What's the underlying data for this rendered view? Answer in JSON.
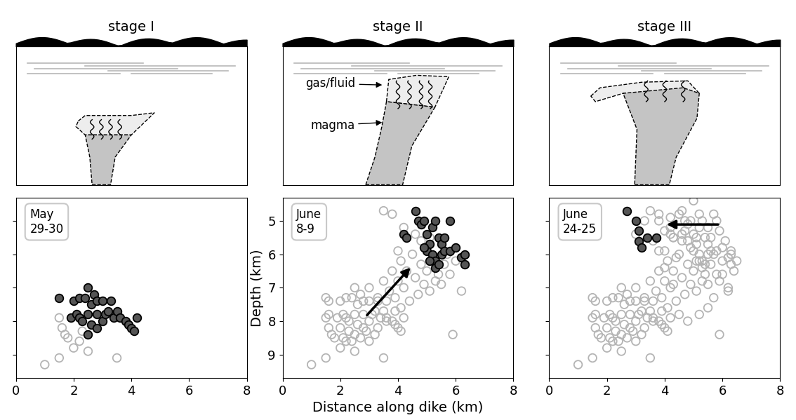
{
  "chart_data": [
    {
      "type": "scatter",
      "title": "stage I",
      "annotations": [
        "May\n29-30"
      ],
      "xlim": [
        0,
        8
      ],
      "xticks": [
        0,
        2,
        4,
        6,
        8
      ],
      "ylim": [
        9.7,
        4.3
      ],
      "yticks": [
        5,
        6,
        7,
        8,
        9
      ],
      "tick_labels": "x",
      "series": [
        {
          "color": "#b4b4b4",
          "marker": "circle_open",
          "x": [
            1.0,
            1.5,
            1.5,
            1.6,
            1.7,
            1.8,
            2.0,
            2.2,
            2.3,
            2.5,
            3.5
          ],
          "values": [
            9.3,
            7.9,
            9.1,
            8.2,
            8.4,
            8.5,
            8.8,
            8.6,
            8.3,
            8.9,
            9.1
          ]
        },
        {
          "color": "#555555",
          "marker": "circle",
          "x": [
            1.5,
            1.9,
            2.0,
            2.1,
            2.2,
            2.2,
            2.3,
            2.4,
            2.5,
            2.5,
            2.5,
            2.6,
            2.6,
            2.7,
            2.8,
            2.8,
            2.8,
            3.0,
            3.0,
            3.1,
            3.2,
            3.3,
            3.4,
            3.5,
            3.6,
            3.8,
            3.9,
            4.0,
            4.1,
            4.2
          ],
          "values": [
            7.3,
            7.9,
            7.4,
            7.8,
            7.3,
            7.9,
            8.0,
            7.3,
            7.0,
            7.8,
            8.4,
            7.5,
            8.1,
            7.2,
            7.4,
            7.8,
            8.2,
            7.4,
            8.0,
            7.8,
            7.7,
            7.4,
            7.9,
            7.7,
            7.9,
            8.0,
            8.1,
            8.2,
            8.3,
            7.9
          ]
        }
      ]
    },
    {
      "type": "scatter",
      "title": "stage II",
      "annotations": [
        "June\n8-9",
        "gas/fluid",
        "magma"
      ],
      "x_label": "Distance along dike (km)",
      "y_label": "Depth (km)",
      "xlim": [
        0,
        8
      ],
      "xticks": [
        0,
        2,
        4,
        6,
        8
      ],
      "ylim": [
        9.7,
        4.3
      ],
      "yticks": [
        5,
        6,
        7,
        8,
        9
      ],
      "series": [
        {
          "color": "#b4b4b4",
          "marker": "circle_open",
          "x": [
            1.0,
            1.5,
            1.5,
            1.6,
            1.7,
            1.8,
            2.0,
            2.2,
            2.3,
            2.5,
            3.5
          ],
          "values": [
            9.3,
            7.9,
            9.1,
            8.2,
            8.4,
            8.5,
            8.8,
            8.6,
            8.3,
            8.9,
            9.1
          ]
        },
        {
          "color": "#b4b4b4",
          "marker": "circle_open",
          "x": [
            1.5,
            1.9,
            2.0,
            2.1,
            2.2,
            2.2,
            2.3,
            2.4,
            2.5,
            2.5,
            2.5,
            2.6,
            2.6,
            2.7,
            2.8,
            2.8,
            2.8,
            3.0,
            3.0,
            3.1,
            3.2,
            3.3,
            3.4,
            3.5,
            3.6,
            3.8,
            3.9,
            4.0,
            4.1,
            4.2
          ],
          "values": [
            7.3,
            7.9,
            7.4,
            7.8,
            7.3,
            7.9,
            8.0,
            7.3,
            7.0,
            7.8,
            8.4,
            7.5,
            8.1,
            7.2,
            7.4,
            7.8,
            8.2,
            7.4,
            8.0,
            7.8,
            7.7,
            7.4,
            7.9,
            7.7,
            7.9,
            8.0,
            8.1,
            8.2,
            8.3,
            7.9
          ]
        },
        {
          "color": "#b4b4b4",
          "marker": "circle_open",
          "x": [
            1.6,
            1.6,
            2.0,
            2.1,
            2.4,
            2.7,
            2.9,
            3.0,
            3.2,
            3.3,
            3.0,
            3.3,
            3.5,
            3.6,
            3.7,
            3.8,
            3.9,
            4.0,
            4.1,
            4.2,
            4.3,
            4.4,
            4.5,
            4.6,
            4.7,
            4.8,
            4.9,
            5.0,
            5.1,
            5.2,
            5.3,
            5.4,
            5.5,
            5.6,
            5.7,
            5.8,
            6.0,
            6.2,
            4.0,
            4.2,
            3.8,
            3.5,
            4.3,
            4.6,
            4.8,
            5.1,
            5.9,
            3.6,
            3.9,
            4.1
          ],
          "values": [
            7.4,
            7.8,
            8.2,
            8.5,
            8.6,
            8.5,
            8.3,
            8.6,
            8.4,
            8.2,
            7.0,
            7.3,
            6.8,
            7.4,
            7.1,
            6.5,
            7.3,
            6.8,
            6.2,
            7.0,
            6.5,
            7.4,
            6.0,
            6.7,
            7.2,
            6.3,
            6.9,
            6.5,
            7.1,
            6.2,
            6.8,
            6.6,
            6.9,
            6.3,
            6.0,
            6.6,
            6.2,
            7.1,
            5.9,
            5.2,
            4.8,
            4.7,
            5.5,
            5.4,
            5.6,
            5.5,
            8.4,
            8.0,
            7.7,
            7.6
          ]
        },
        {
          "color": "#555555",
          "marker": "circle",
          "x": [
            4.2,
            4.3,
            4.6,
            4.7,
            4.8,
            4.9,
            5.0,
            5.1,
            5.2,
            5.3,
            5.4,
            5.5,
            5.6,
            5.8,
            5.0,
            5.2,
            5.3,
            5.3,
            5.5,
            5.6,
            5.1,
            5.8,
            6.0,
            6.2,
            6.3,
            6.3,
            5.4,
            4.9
          ],
          "values": [
            5.4,
            5.5,
            4.7,
            5.0,
            5.1,
            5.0,
            5.4,
            5.7,
            5.2,
            5.0,
            5.5,
            5.7,
            5.5,
            5.0,
            5.9,
            6.0,
            6.2,
            6.4,
            6.0,
            5.9,
            6.2,
            5.9,
            5.8,
            6.1,
            6.0,
            6.3,
            6.3,
            5.8
          ]
        }
      ]
    },
    {
      "type": "scatter",
      "title": "stage III",
      "annotations": [
        "June\n24-25"
      ],
      "xlim": [
        0,
        8
      ],
      "xticks": [
        0,
        2,
        4,
        6,
        8
      ],
      "ylim": [
        9.7,
        4.3
      ],
      "yticks": [
        5,
        6,
        7,
        8,
        9
      ],
      "tick_labels": "x",
      "series": [
        {
          "color": "#b4b4b4",
          "marker": "circle_open",
          "x": [
            1.0,
            1.5,
            1.5,
            1.6,
            1.7,
            1.8,
            2.0,
            2.2,
            2.3,
            2.5,
            3.5
          ],
          "values": [
            9.3,
            7.9,
            9.1,
            8.2,
            8.4,
            8.5,
            8.8,
            8.6,
            8.3,
            8.9,
            9.1
          ]
        },
        {
          "color": "#b4b4b4",
          "marker": "circle_open",
          "x": [
            1.5,
            1.9,
            2.0,
            2.1,
            2.2,
            2.2,
            2.3,
            2.4,
            2.5,
            2.5,
            2.5,
            2.6,
            2.6,
            2.7,
            2.8,
            2.8,
            2.8,
            3.0,
            3.0,
            3.1,
            3.2,
            3.3,
            3.4,
            3.5,
            3.6,
            3.8,
            3.9,
            4.0,
            4.1,
            4.2
          ],
          "values": [
            7.3,
            7.9,
            7.4,
            7.8,
            7.3,
            7.9,
            8.0,
            7.3,
            7.0,
            7.8,
            8.4,
            7.5,
            8.1,
            7.2,
            7.4,
            7.8,
            8.2,
            7.4,
            8.0,
            7.8,
            7.7,
            7.4,
            7.9,
            7.7,
            7.9,
            8.0,
            8.1,
            8.2,
            8.3,
            7.9
          ]
        },
        {
          "color": "#b4b4b4",
          "marker": "circle_open",
          "x": [
            1.6,
            1.6,
            2.0,
            2.1,
            2.4,
            2.7,
            2.9,
            3.0,
            3.2,
            3.3,
            3.0,
            3.3,
            3.5,
            3.6,
            3.7,
            3.8,
            3.9,
            4.0,
            4.1,
            4.2,
            4.3,
            4.4,
            4.5,
            4.6,
            4.7,
            4.8,
            4.9,
            5.0,
            5.1,
            5.2,
            5.3,
            5.4,
            5.5,
            5.6,
            5.7,
            5.8,
            6.0,
            6.2,
            4.0,
            4.2,
            3.8,
            3.5,
            4.3,
            4.6,
            4.8,
            5.1,
            5.9,
            3.6,
            3.9,
            4.1
          ],
          "values": [
            7.4,
            7.8,
            8.2,
            8.5,
            8.6,
            8.5,
            8.3,
            8.6,
            8.4,
            8.2,
            7.0,
            7.3,
            6.8,
            7.4,
            7.1,
            6.5,
            7.3,
            6.8,
            6.2,
            7.0,
            6.5,
            7.4,
            6.0,
            6.7,
            7.2,
            6.3,
            6.9,
            6.5,
            7.1,
            6.2,
            6.8,
            6.6,
            6.9,
            6.3,
            6.0,
            6.6,
            6.2,
            7.1,
            5.9,
            5.2,
            4.8,
            4.7,
            5.5,
            5.4,
            5.6,
            5.5,
            8.4,
            8.0,
            7.7,
            7.6
          ]
        },
        {
          "color": "#b4b4b4",
          "marker": "circle_open",
          "x": [
            4.2,
            4.3,
            4.6,
            4.7,
            4.8,
            4.9,
            5.0,
            5.1,
            5.2,
            5.3,
            5.4,
            5.5,
            5.6,
            5.8,
            5.0,
            5.2,
            5.3,
            5.3,
            5.5,
            5.6,
            5.1,
            5.8,
            6.0,
            6.2,
            6.3,
            6.3,
            5.4,
            4.9
          ],
          "values": [
            5.4,
            5.5,
            4.7,
            5.0,
            5.1,
            5.0,
            5.4,
            5.7,
            5.2,
            5.0,
            5.5,
            5.7,
            5.5,
            5.0,
            5.9,
            6.0,
            6.2,
            6.4,
            6.0,
            5.9,
            6.2,
            5.9,
            5.8,
            6.1,
            6.0,
            6.3,
            6.3,
            5.8
          ]
        },
        {
          "color": "#b4b4b4",
          "marker": "circle_open",
          "x": [
            3.0,
            3.3,
            3.6,
            3.8,
            4.0,
            4.2,
            4.5,
            4.7,
            5.0,
            5.2,
            5.5,
            5.7,
            5.9,
            6.1,
            6.3,
            6.5,
            6.0,
            6.2,
            5.7,
            5.5,
            5.2,
            4.8,
            4.5,
            4.3,
            4.0,
            5.9,
            6.4,
            3.8,
            4.4,
            4.6
          ],
          "values": [
            5.4,
            5.0,
            5.6,
            5.0,
            5.3,
            4.9,
            4.8,
            5.3,
            4.4,
            4.8,
            5.2,
            4.8,
            5.3,
            5.6,
            5.9,
            6.2,
            6.6,
            7.0,
            7.3,
            7.6,
            7.8,
            8.0,
            7.8,
            6.9,
            6.4,
            6.8,
            6.5,
            5.9,
            6.1,
            5.6
          ]
        },
        {
          "color": "#555555",
          "marker": "circle",
          "x": [
            2.7,
            3.0,
            3.1,
            3.1,
            3.2,
            3.4,
            3.7
          ],
          "values": [
            4.7,
            5.0,
            5.3,
            5.6,
            5.8,
            5.5,
            5.5
          ]
        }
      ]
    }
  ]
}
